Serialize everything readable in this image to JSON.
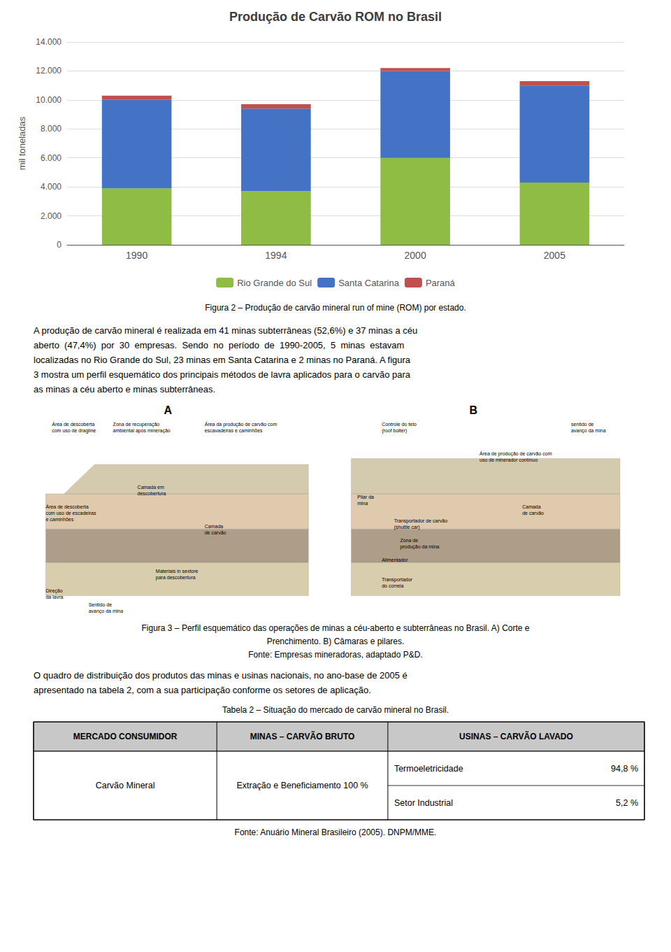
{
  "chart_data": {
    "type": "bar",
    "title": "Produção de Carvão ROM no Brasil",
    "ylabel": "mil toneladas",
    "categories": [
      "1990",
      "1994",
      "2000",
      "2005"
    ],
    "series": [
      {
        "name": "Rio Grande do Sul",
        "color": "#8FBC45",
        "values": [
          3900,
          3700,
          6000,
          4300
        ]
      },
      {
        "name": "Santa Catarina",
        "color": "#4472C4",
        "values": [
          6100,
          5700,
          6000,
          6700
        ]
      },
      {
        "name": "Paraná",
        "color": "#C0504D",
        "values": [
          300,
          300,
          200,
          300
        ]
      }
    ],
    "stacked": true,
    "ylim": [
      0,
      14000
    ],
    "yticks": [
      0,
      {
        "value": 2000,
        "label": "2.000"
      },
      {
        "value": 4000,
        "label": "4.000"
      },
      {
        "value": 6000,
        "label": "6.000"
      },
      {
        "value": 8000,
        "label": "8.000"
      },
      {
        "value": 10000,
        "label": "10.000"
      },
      {
        "value": 12000,
        "label": "12.000"
      },
      {
        "value": 14000,
        "label": "14.000"
      }
    ],
    "grid": true,
    "legend": "bottom",
    "annotations": [
      "Figura 2 – Produção de carvão mineral run of mine (ROM) por estado.",
      "A produção de carvão mineral é realizada em 41 minas subterrâneas (52,6%) e 37 minas a céu\naberto  (47,4%)  por  30  empresas.  Sendo  no  período  de  1990-2005,  5  minas  estavam\nlocalizadas no Rio Grande do Sul, 23 minas em Santa Catarina e 2 minas no Paraná. A figura\n3 mostra um perfil esquemático dos principais métodos de lavra aplicados para o carvão para\nas minas a céu aberto e minas subterrâneas.",
      "A",
      "B",
      "Área de descoberta\ncom uso de dragline",
      "Zona de recuperação\nambiental após mineração",
      "Área da produção de carvão com\nescavadeiras e caminhões",
      "Camada em\ndescobertura",
      "Camada\nde carvão",
      "Materiais in sextore\npara descobertura",
      "Área de descoberta\ncom uso de escadeiras\ne caminhões",
      "Direção\nda lavra",
      "Sentido de\navanço da mina",
      "Controle do teto\n(roof bolter)",
      "sentido de\navanço da mina",
      "Área de produção de carvão com\nuso de minerador contínuo",
      "Pilar da\nmina",
      "Camada\nde carvão",
      "Transportador de carvão\n(shuttle car)",
      "Zona de\nprodução da mina",
      "Alimentador",
      "Transportador\ndo correia",
      "Figura 3 – Perfil esquemático das operações de minas a céu-aberto e subterrâneas no Brasil. A) Corte e\nPrenchimento. B) Câmaras e pilares.\nFonte: Empresas mineradoras, adaptado P&D.",
      "O quadro de distribuição dos produtos das minas e usinas nacionais, no ano-base de 2005 é\napresentado na tabela 2, com a sua participação conforme os setores de aplicação.",
      "Tabela 2 – Situação do mercado de carvão mineral no Brasil.",
      "MERCADO CONSUMIDOR",
      "MINAS – CARVÃO BRUTO",
      "USINAS – CARVÃO LAVADO",
      "Carvão Mineral",
      "Extração e Beneficiamento 100 %",
      "Termoeletricidade",
      "94,8 %",
      "Setor Industrial",
      "5,2 %",
      "Fonte: Anuário Mineral Brasileiro (2005). DNPM/MME."
    ]
  }
}
